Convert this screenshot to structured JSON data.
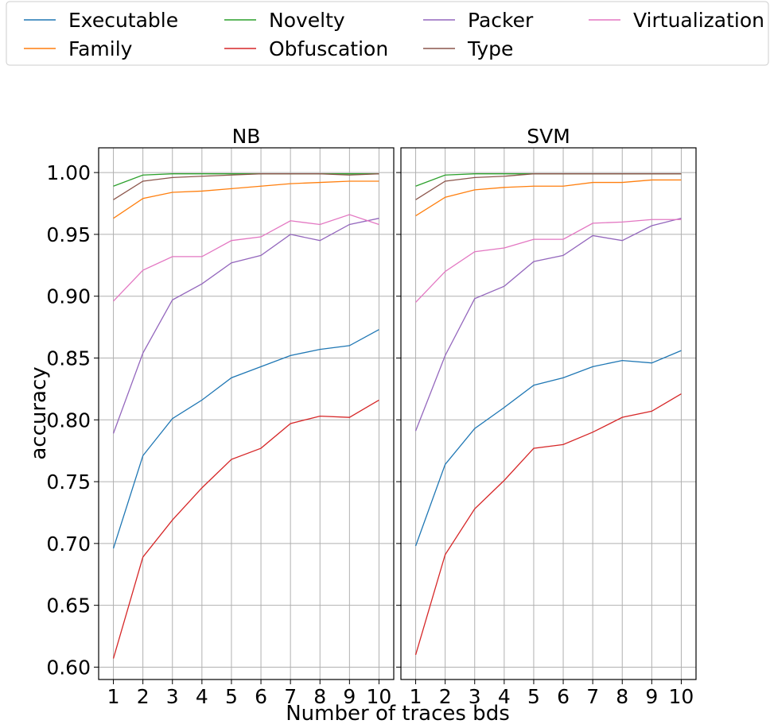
{
  "chart_data": {
    "type": "line",
    "x": [
      1,
      2,
      3,
      4,
      5,
      6,
      7,
      8,
      9,
      10
    ],
    "x_tick_labels": [
      "1",
      "2",
      "3",
      "4",
      "5",
      "6",
      "7",
      "8",
      "9",
      "10"
    ],
    "xlabel": "Number of traces bds",
    "ylabel": "accuracy",
    "ylim": [
      0.59,
      1.02
    ],
    "y_ticks": [
      0.6,
      0.65,
      0.7,
      0.75,
      0.8,
      0.85,
      0.9,
      0.95,
      1.0
    ],
    "y_tick_labels": [
      "0.60",
      "0.65",
      "0.70",
      "0.75",
      "0.80",
      "0.85",
      "0.90",
      "0.95",
      "1.00"
    ],
    "grid": true,
    "legend_position": "top",
    "legend": [
      {
        "name": "Executable",
        "color": "#1f77b4"
      },
      {
        "name": "Family",
        "color": "#ff7f0e"
      },
      {
        "name": "Novelty",
        "color": "#2ca02c"
      },
      {
        "name": "Obfuscation",
        "color": "#d62728"
      },
      {
        "name": "Packer",
        "color": "#9467bd"
      },
      {
        "name": "Type",
        "color": "#8c564b"
      },
      {
        "name": "Virtualization",
        "color": "#e377c2"
      }
    ],
    "panels": [
      {
        "title": "NB",
        "series": [
          {
            "name": "Executable",
            "values": [
              0.696,
              0.771,
              0.801,
              0.816,
              0.834,
              0.843,
              0.852,
              0.857,
              0.86,
              0.873
            ]
          },
          {
            "name": "Family",
            "values": [
              0.963,
              0.979,
              0.984,
              0.985,
              0.987,
              0.989,
              0.991,
              0.992,
              0.993,
              0.993
            ]
          },
          {
            "name": "Novelty",
            "values": [
              0.989,
              0.998,
              0.999,
              0.999,
              0.999,
              0.999,
              0.999,
              0.999,
              0.999,
              0.999
            ]
          },
          {
            "name": "Obfuscation",
            "values": [
              0.607,
              0.689,
              0.719,
              0.745,
              0.768,
              0.777,
              0.797,
              0.803,
              0.802,
              0.816
            ]
          },
          {
            "name": "Packer",
            "values": [
              0.789,
              0.854,
              0.897,
              0.91,
              0.927,
              0.933,
              0.95,
              0.945,
              0.958,
              0.963
            ]
          },
          {
            "name": "Type",
            "values": [
              0.978,
              0.993,
              0.996,
              0.997,
              0.998,
              0.999,
              0.999,
              0.999,
              0.998,
              0.999
            ]
          },
          {
            "name": "Virtualization",
            "values": [
              0.896,
              0.921,
              0.932,
              0.932,
              0.945,
              0.948,
              0.961,
              0.958,
              0.966,
              0.958
            ]
          }
        ]
      },
      {
        "title": "SVM",
        "series": [
          {
            "name": "Executable",
            "values": [
              0.698,
              0.764,
              0.793,
              0.81,
              0.828,
              0.834,
              0.843,
              0.848,
              0.846,
              0.856
            ]
          },
          {
            "name": "Family",
            "values": [
              0.965,
              0.98,
              0.986,
              0.988,
              0.989,
              0.989,
              0.992,
              0.992,
              0.994,
              0.994
            ]
          },
          {
            "name": "Novelty",
            "values": [
              0.989,
              0.998,
              0.999,
              0.999,
              0.999,
              0.999,
              0.999,
              0.999,
              0.999,
              0.999
            ]
          },
          {
            "name": "Obfuscation",
            "values": [
              0.61,
              0.691,
              0.728,
              0.751,
              0.777,
              0.78,
              0.79,
              0.802,
              0.807,
              0.821
            ]
          },
          {
            "name": "Packer",
            "values": [
              0.791,
              0.852,
              0.898,
              0.908,
              0.928,
              0.933,
              0.949,
              0.945,
              0.957,
              0.963
            ]
          },
          {
            "name": "Type",
            "values": [
              0.978,
              0.993,
              0.996,
              0.997,
              0.999,
              0.999,
              0.999,
              0.999,
              0.999,
              0.999
            ]
          },
          {
            "name": "Virtualization",
            "values": [
              0.895,
              0.92,
              0.936,
              0.939,
              0.946,
              0.946,
              0.959,
              0.96,
              0.962,
              0.962
            ]
          }
        ]
      }
    ]
  }
}
